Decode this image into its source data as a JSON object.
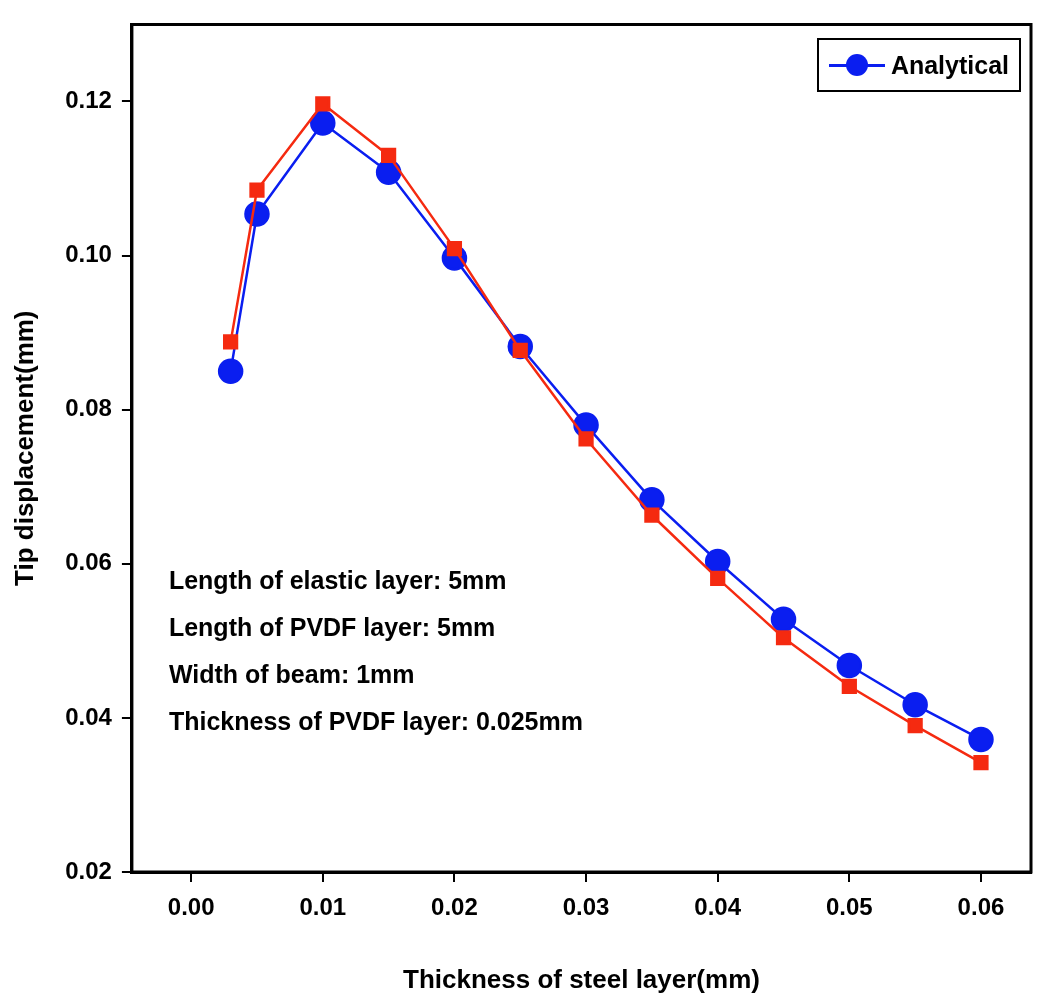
{
  "chart_data": {
    "type": "line",
    "xlabel": "Thickness of steel layer(mm)",
    "ylabel": "Tip displacement(mm)",
    "x": [
      0.003,
      0.005,
      0.01,
      0.015,
      0.02,
      0.025,
      0.03,
      0.035,
      0.04,
      0.045,
      0.05,
      0.055,
      0.06
    ],
    "series": [
      {
        "name": "Analytical",
        "color": "#0a1ef0",
        "marker": "circle",
        "values": [
          0.085,
          0.1054,
          0.1172,
          0.1108,
          0.0997,
          0.0882,
          0.078,
          0.0683,
          0.0603,
          0.0528,
          0.0468,
          0.0417,
          0.0372
        ]
      },
      {
        "color": "#f52a10",
        "marker": "square",
        "values": [
          0.0888,
          0.1085,
          0.1197,
          0.113,
          0.1009,
          0.0877,
          0.0762,
          0.0663,
          0.0581,
          0.0504,
          0.0441,
          0.039,
          0.0342
        ]
      }
    ],
    "xlim": [
      -0.0045,
      0.0638
    ],
    "xticks": [
      {
        "value": 0,
        "label": "0.00"
      },
      0.01,
      0.02,
      0.03,
      0.04,
      0.05,
      0.06
    ],
    "ylim": [
      0.02,
      0.13
    ],
    "yticks": [
      0.02,
      {
        "value": 0.04,
        "label": "0.04"
      },
      {
        "value": 0.06,
        "label": "0.06"
      },
      {
        "value": 0.08,
        "label": "0.08"
      },
      {
        "value": 0.1,
        "label": "0.10"
      },
      0.12
    ],
    "annotations": [
      "Length of elastic layer: 5mm",
      "Length of PVDF layer: 5mm",
      "Width of beam: 1mm",
      "Thickness of PVDF layer: 0.025mm"
    ],
    "legend": "top right",
    "grid": false,
    "line_style": "solid"
  }
}
